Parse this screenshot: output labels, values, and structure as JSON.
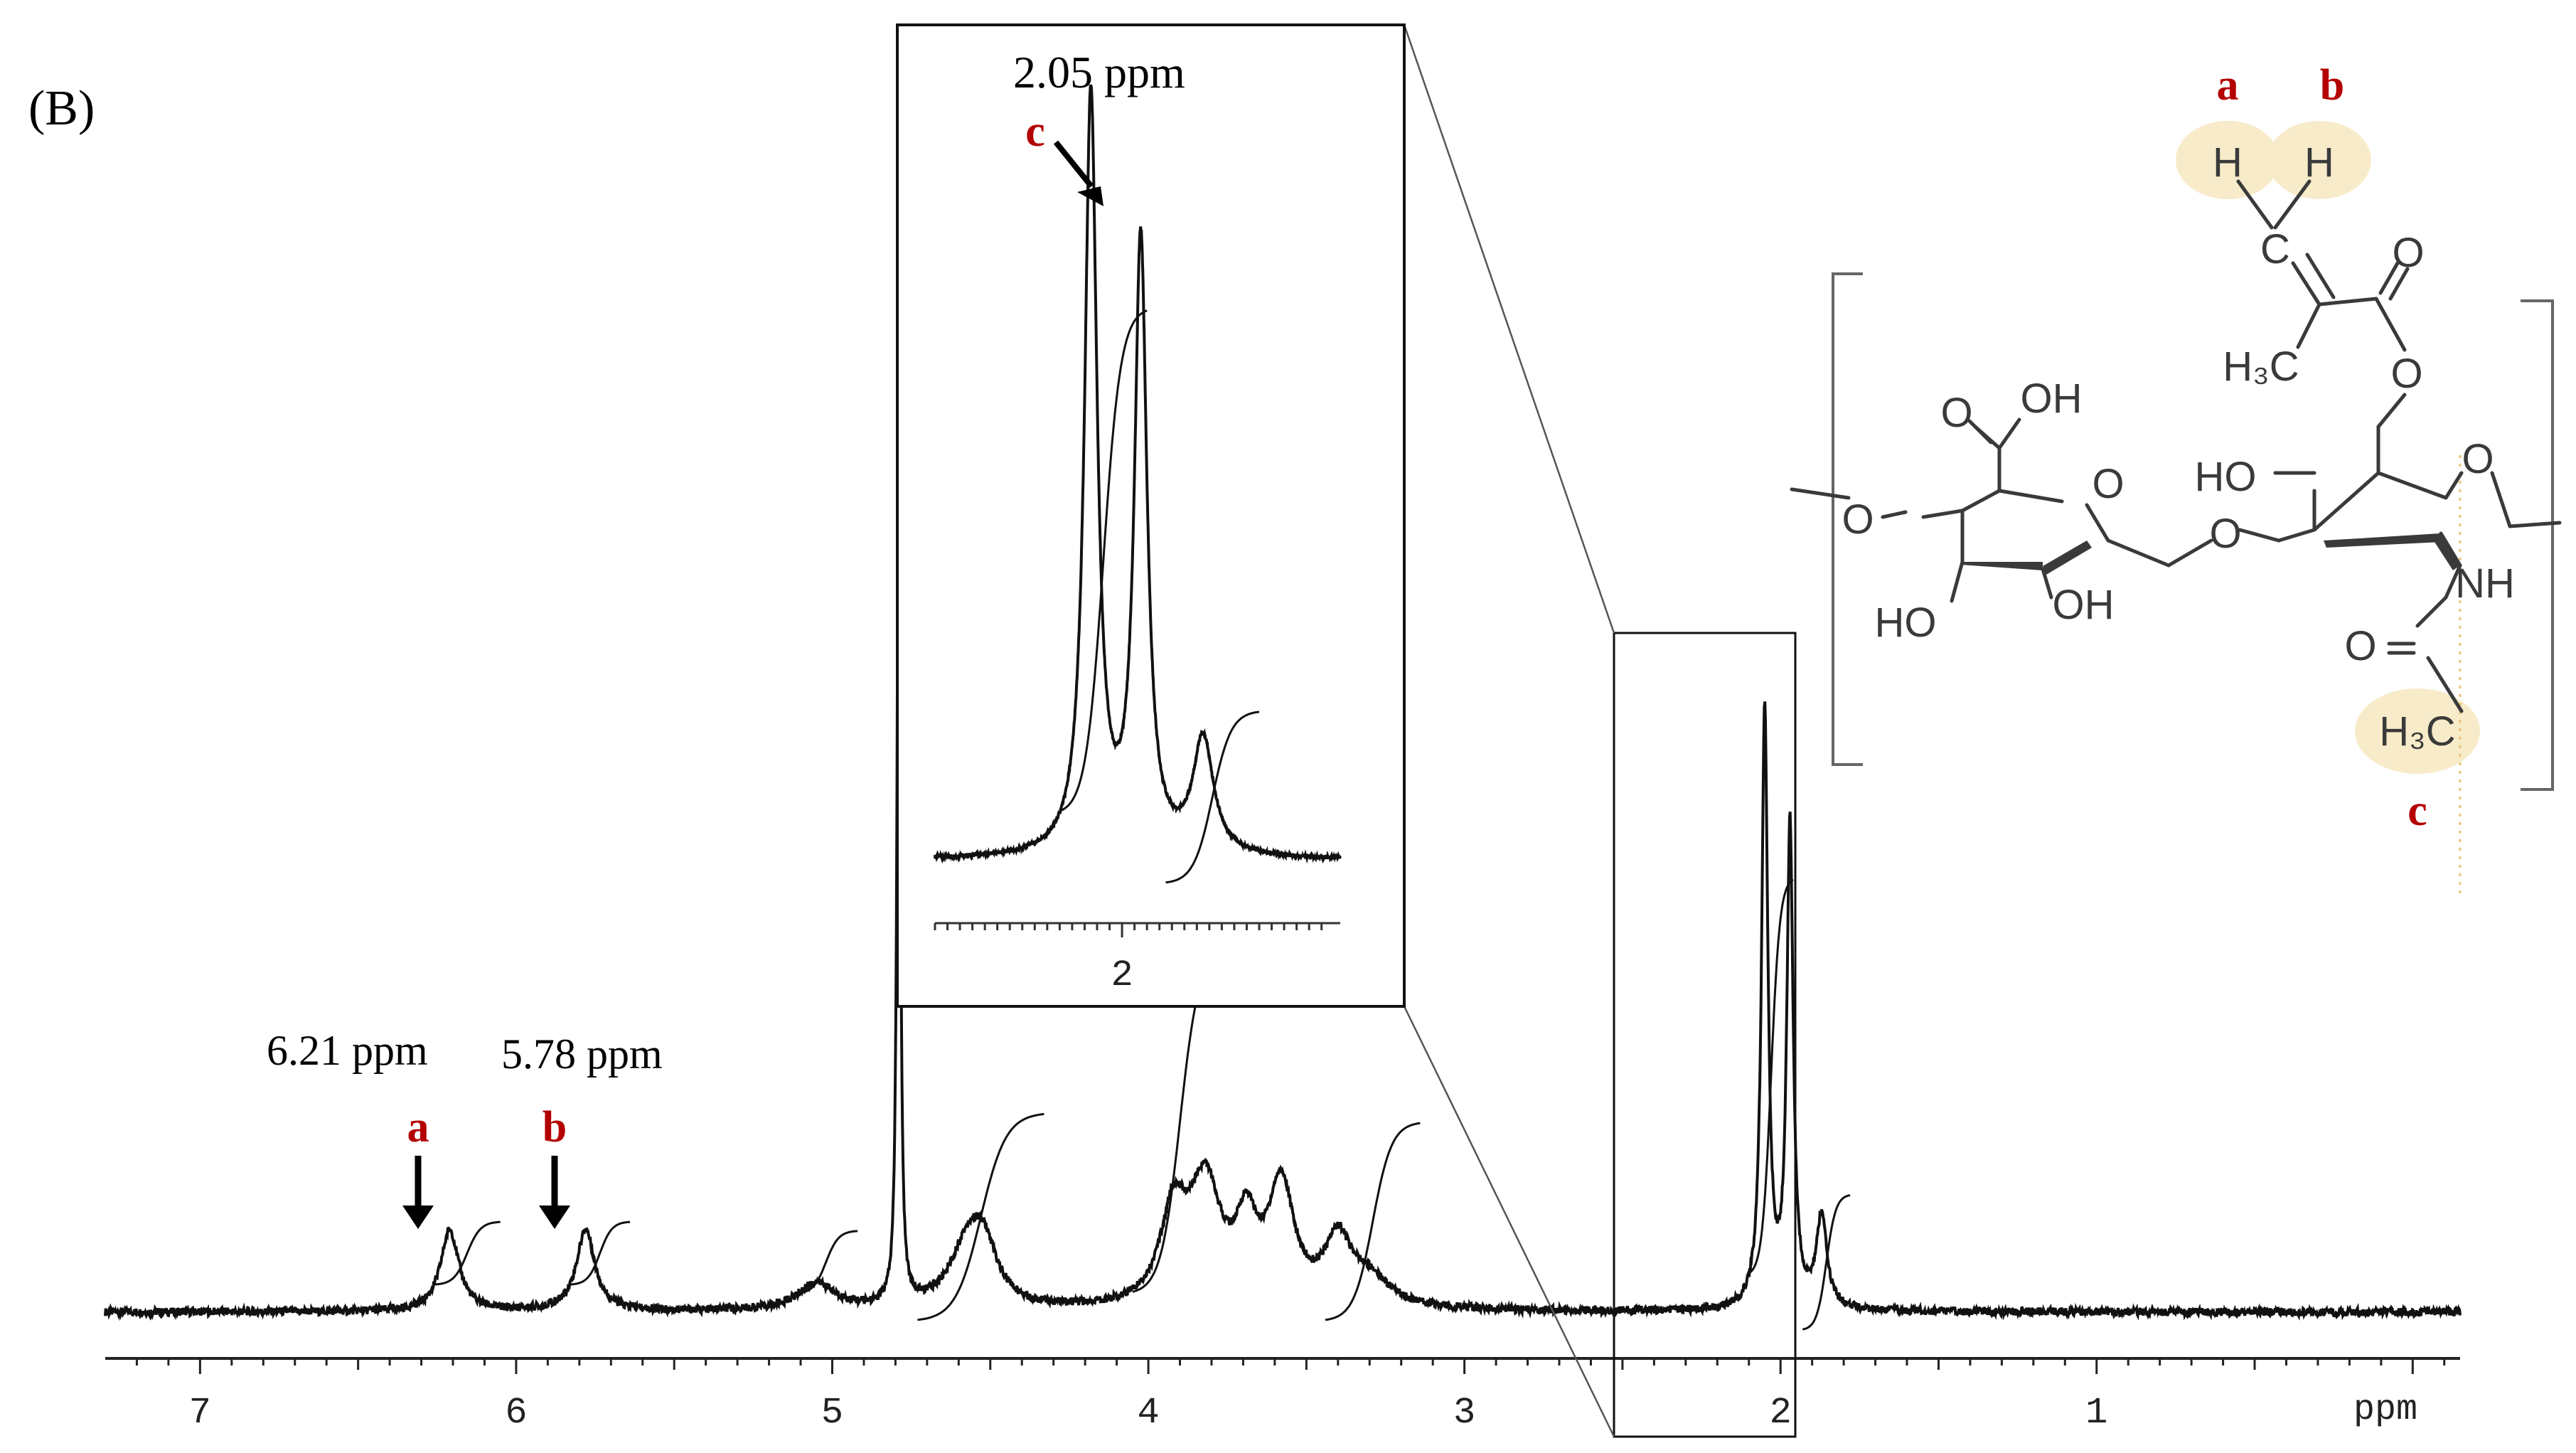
{
  "colors": {
    "trace": "#111111",
    "label_red": "#b30000",
    "highlight": "#f7ebc9",
    "structure": "#3a3a3a",
    "zoom_line": "#555555"
  },
  "chart_data": {
    "type": "line",
    "panel_label": "(B)",
    "xlabel": "ppm",
    "x_reversed": true,
    "xlim": [
      7.3,
      -0.15
    ],
    "x_ticks": [
      "7",
      "6",
      "5",
      "4",
      "3",
      "2",
      "1"
    ],
    "x_tick_values": [
      7,
      6,
      5,
      4,
      3,
      2,
      1
    ],
    "baseline": 0,
    "ylim": [
      -1,
      100
    ],
    "grid": false,
    "peaks": [
      {
        "x": 6.21,
        "height": 9,
        "width": 0.035
      },
      {
        "x": 5.78,
        "height": 9,
        "width": 0.035
      },
      {
        "x": 5.05,
        "height": 3,
        "width": 0.07
      },
      {
        "x": 4.79,
        "height": 100,
        "width": 0.006
      },
      {
        "x": 4.57,
        "height": 7,
        "width": 0.07
      },
      {
        "x": 4.52,
        "height": 5,
        "width": 0.05
      },
      {
        "x": 3.92,
        "height": 10,
        "width": 0.05
      },
      {
        "x": 3.82,
        "height": 13,
        "width": 0.06
      },
      {
        "x": 3.69,
        "height": 8,
        "width": 0.04
      },
      {
        "x": 3.58,
        "height": 13,
        "width": 0.05
      },
      {
        "x": 3.4,
        "height": 7,
        "width": 0.05
      },
      {
        "x": 3.3,
        "height": 3,
        "width": 0.08
      },
      {
        "x": 2.05,
        "height": 66,
        "width": 0.012
      },
      {
        "x": 1.97,
        "height": 53,
        "width": 0.012
      },
      {
        "x": 1.87,
        "height": 10,
        "width": 0.02
      }
    ],
    "annotations": [
      {
        "label": "a",
        "shift_text": "6.21 ppm",
        "x": 6.21
      },
      {
        "label": "b",
        "shift_text": "5.78 ppm",
        "x": 5.78
      }
    ],
    "inset": {
      "xlim": [
        2.3,
        1.65
      ],
      "x_tick_label": "2",
      "x_tick_value": 2,
      "annotation": {
        "label": "c",
        "shift_text": "2.05 ppm",
        "x": 2.05
      }
    }
  },
  "structure": {
    "labels": [
      "a",
      "b",
      "c"
    ],
    "atoms": {
      "H_a": "H",
      "H_b": "H",
      "C_vinyl": "C",
      "O_carbonyl_top": "O",
      "H3C_methyl": "H₃C",
      "O_ester": "O",
      "O_acid": "O",
      "OH_acid": "OH",
      "O_left": "O",
      "O_ring1": "O",
      "HO_left": "HO",
      "OH_ring1": "OH",
      "O_link": "O",
      "HO_ring2": "HO",
      "O_ring2": "O",
      "NH": "NH",
      "O_amide": "O",
      "H3C_amide": "H₃C"
    }
  }
}
